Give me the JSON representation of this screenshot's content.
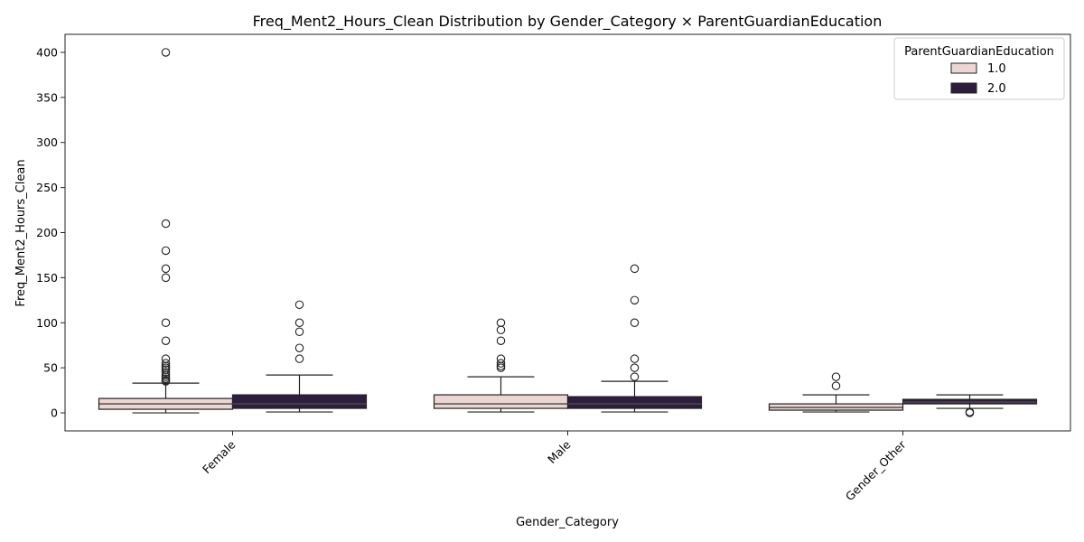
{
  "chart_data": {
    "type": "box",
    "title": "Freq_Ment2_Hours_Clean Distribution by Gender_Category × ParentGuardianEducation",
    "xlabel": "Gender_Category",
    "ylabel": "Freq_Ment2_Hours_Clean",
    "categories": [
      "Female",
      "Male",
      "Gender_Other"
    ],
    "ylim": [
      -20,
      420
    ],
    "yticks": [
      0,
      50,
      100,
      150,
      200,
      250,
      300,
      350,
      400
    ],
    "grid": false,
    "legend": {
      "title": "ParentGuardianEducation",
      "placement": "top-right"
    },
    "series": [
      {
        "name": "1.0",
        "color": "#ebd6d3",
        "boxes": [
          {
            "min": 0,
            "q1": 4,
            "median": 10,
            "q3": 16,
            "max": 33,
            "outliers": [
              35,
              36,
              38,
              40,
              42,
              45,
              48,
              50,
              52,
              55,
              60,
              80,
              100,
              150,
              160,
              180,
              210,
              400
            ]
          },
          {
            "min": 1,
            "q1": 5,
            "median": 10,
            "q3": 20,
            "max": 40,
            "outliers": [
              50,
              52,
              55,
              60,
              80,
              92,
              100
            ]
          },
          {
            "min": 1,
            "q1": 3,
            "median": 6,
            "q3": 10,
            "max": 20,
            "outliers": [
              30,
              40
            ]
          }
        ]
      },
      {
        "name": "2.0",
        "color": "#2d1e3e",
        "boxes": [
          {
            "min": 1,
            "q1": 5,
            "median": 10,
            "q3": 20,
            "max": 42,
            "outliers": [
              60,
              72,
              90,
              100,
              120
            ]
          },
          {
            "min": 1,
            "q1": 5,
            "median": 10,
            "q3": 18,
            "max": 35,
            "outliers": [
              40,
              50,
              60,
              100,
              125,
              160
            ]
          },
          {
            "min": 5,
            "q1": 10,
            "median": 12,
            "q3": 15,
            "max": 20,
            "outliers": [
              0,
              1
            ]
          }
        ]
      }
    ]
  }
}
